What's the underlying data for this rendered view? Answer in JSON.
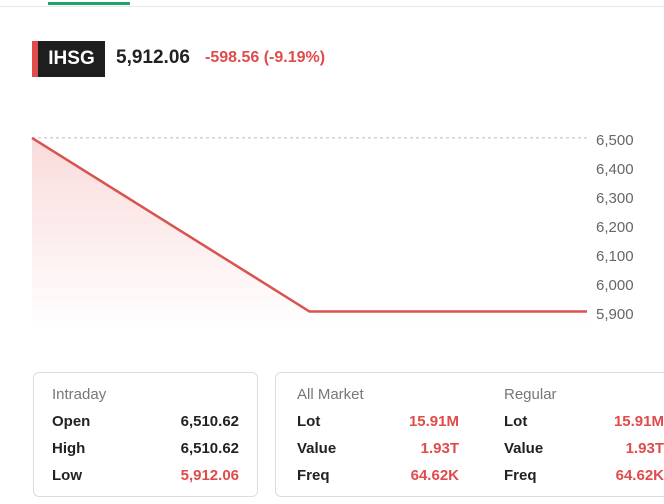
{
  "header": {
    "ticker": "IHSG",
    "price": "5,912.06",
    "change": "-598.56 (-9.19%)"
  },
  "chart_data": {
    "type": "line",
    "categories": [
      null,
      null,
      null
    ],
    "values": [
      6510.62,
      5912.06,
      5912.06
    ],
    "color": "#d9534f",
    "reference": 6510.62,
    "ylim": [
      5850,
      6550
    ],
    "yticks": [
      {
        "value": 5900,
        "label": "5,900"
      },
      {
        "value": 6000,
        "label": "6,000"
      },
      {
        "value": 6100,
        "label": "6,100"
      },
      {
        "value": 6200,
        "label": "6,200"
      },
      {
        "value": 6300,
        "label": "6,300"
      },
      {
        "value": 6400,
        "label": "6,400"
      },
      {
        "value": 6500,
        "label": "6,500"
      }
    ]
  },
  "stats": [
    {
      "title": "Intraday",
      "rows": [
        [
          "Open",
          "6,510.62"
        ],
        [
          "High",
          "6,510.62"
        ],
        [
          "Low",
          "5,912.06"
        ]
      ]
    },
    {
      "title": "All Market",
      "rows": [
        [
          "Lot",
          "15.91M"
        ],
        [
          "Value",
          "1.93T"
        ],
        [
          "Freq",
          "64.62K"
        ]
      ]
    },
    {
      "title": "Regular",
      "rows": [
        [
          "Lot",
          "15.91M"
        ],
        [
          "Value",
          "1.93T"
        ],
        [
          "Freq",
          "64.62K"
        ]
      ]
    }
  ]
}
